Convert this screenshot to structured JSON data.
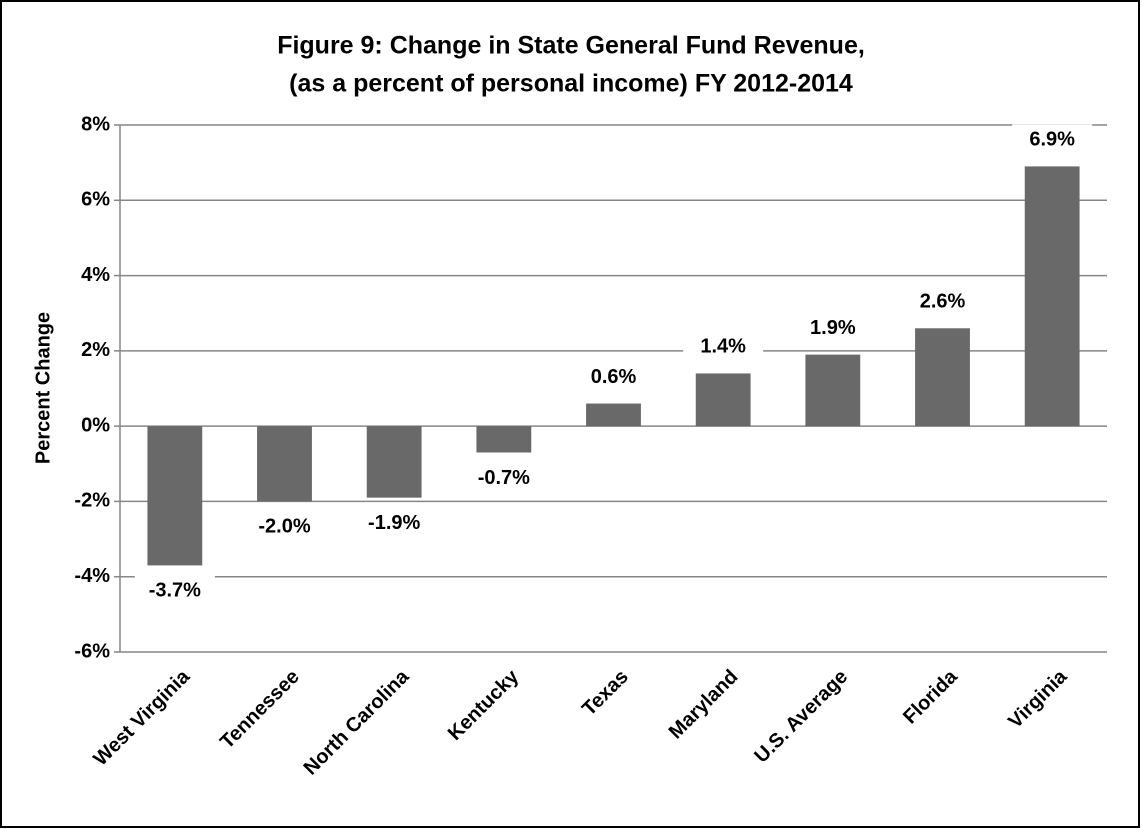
{
  "chart_data": {
    "type": "bar",
    "title": [
      "Figure 9: Change in State General Fund Revenue,",
      "(as a percent of personal income) FY 2012-2014"
    ],
    "y_label": "Percent Change",
    "categories": [
      "West Virginia",
      "Tennessee",
      "North Carolina",
      "Kentucky",
      "Texas",
      "Maryland",
      "U.S. Average",
      "Florida",
      "Virginia"
    ],
    "values": [
      -3.7,
      -2.0,
      -1.9,
      -0.7,
      0.6,
      1.4,
      1.9,
      2.6,
      6.9
    ],
    "value_labels": [
      "-3.7%",
      "-2.0%",
      "-1.9%",
      "-0.7%",
      "0.6%",
      "1.4%",
      "1.9%",
      "2.6%",
      "6.9%"
    ],
    "color": "#696969",
    "ylim": [
      -6,
      8
    ],
    "yticks": [
      {
        "value": -6,
        "label": "-6%"
      },
      {
        "value": -4,
        "label": "-4%"
      },
      {
        "value": -2,
        "label": "-2%"
      },
      {
        "value": 0,
        "label": "0%"
      },
      {
        "value": 2,
        "label": "2%"
      },
      {
        "value": 4,
        "label": "4%"
      },
      {
        "value": 6,
        "label": "6%"
      },
      {
        "value": 8,
        "label": "8%"
      }
    ],
    "grid": true
  }
}
